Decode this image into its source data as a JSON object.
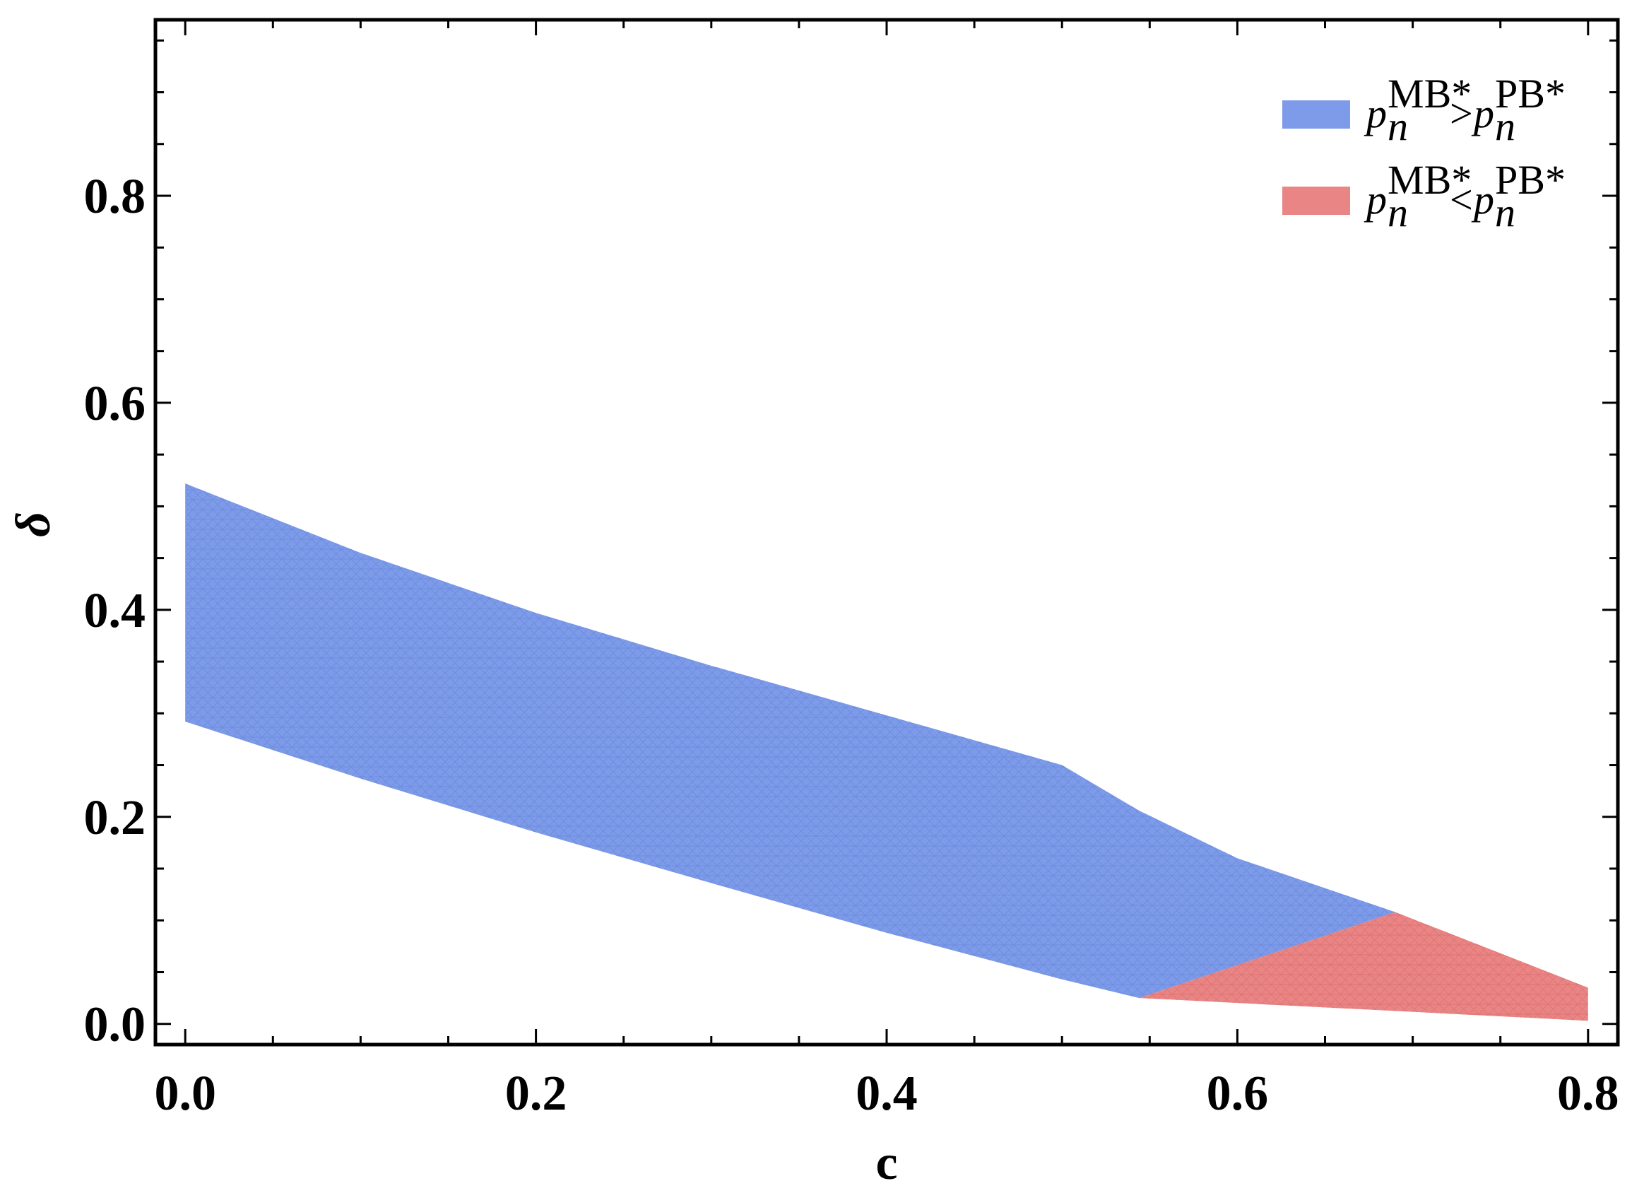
{
  "chart_data": {
    "type": "area",
    "title": "",
    "xlabel": "c",
    "ylabel": "δ",
    "xlim": [
      -0.017,
      0.817
    ],
    "ylim": [
      -0.02,
      0.97
    ],
    "xticks": [
      "0.0",
      "0.2",
      "0.4",
      "0.6",
      "0.8"
    ],
    "yticks": [
      "0.0",
      "0.2",
      "0.4",
      "0.6",
      "0.8"
    ],
    "grid": false,
    "legend_position": "top-right",
    "series": [
      {
        "name": "p_n^{MB*} > p_n^{PB*}",
        "color": "#7d9be8",
        "upper": {
          "x": [
            0.0,
            0.1,
            0.2,
            0.3,
            0.4,
            0.5,
            0.544,
            0.6,
            0.69
          ],
          "y": [
            0.522,
            0.455,
            0.397,
            0.346,
            0.298,
            0.25,
            0.206,
            0.16,
            0.108
          ]
        },
        "lower": {
          "x": [
            0.0,
            0.1,
            0.2,
            0.3,
            0.4,
            0.5,
            0.544,
            0.69
          ],
          "y": [
            0.292,
            0.237,
            0.185,
            0.136,
            0.088,
            0.043,
            0.025,
            0.108
          ]
        }
      },
      {
        "name": "p_n^{MB*} < p_n^{PB*}",
        "color": "#e98585",
        "upper": {
          "x": [
            0.544,
            0.69,
            0.8
          ],
          "y": [
            0.025,
            0.108,
            0.035
          ]
        },
        "lower": {
          "x": [
            0.544,
            0.8
          ],
          "y": [
            0.025,
            0.003
          ]
        }
      }
    ]
  },
  "legend": {
    "items": [
      {
        "p": "p",
        "n": "n",
        "sup1": "MB*",
        "op": ">",
        "sup2": "PB*",
        "color": "#7d9be8"
      },
      {
        "p": "p",
        "n": "n",
        "sup1": "MB*",
        "op": "<",
        "sup2": "PB*",
        "color": "#e98585"
      }
    ]
  }
}
